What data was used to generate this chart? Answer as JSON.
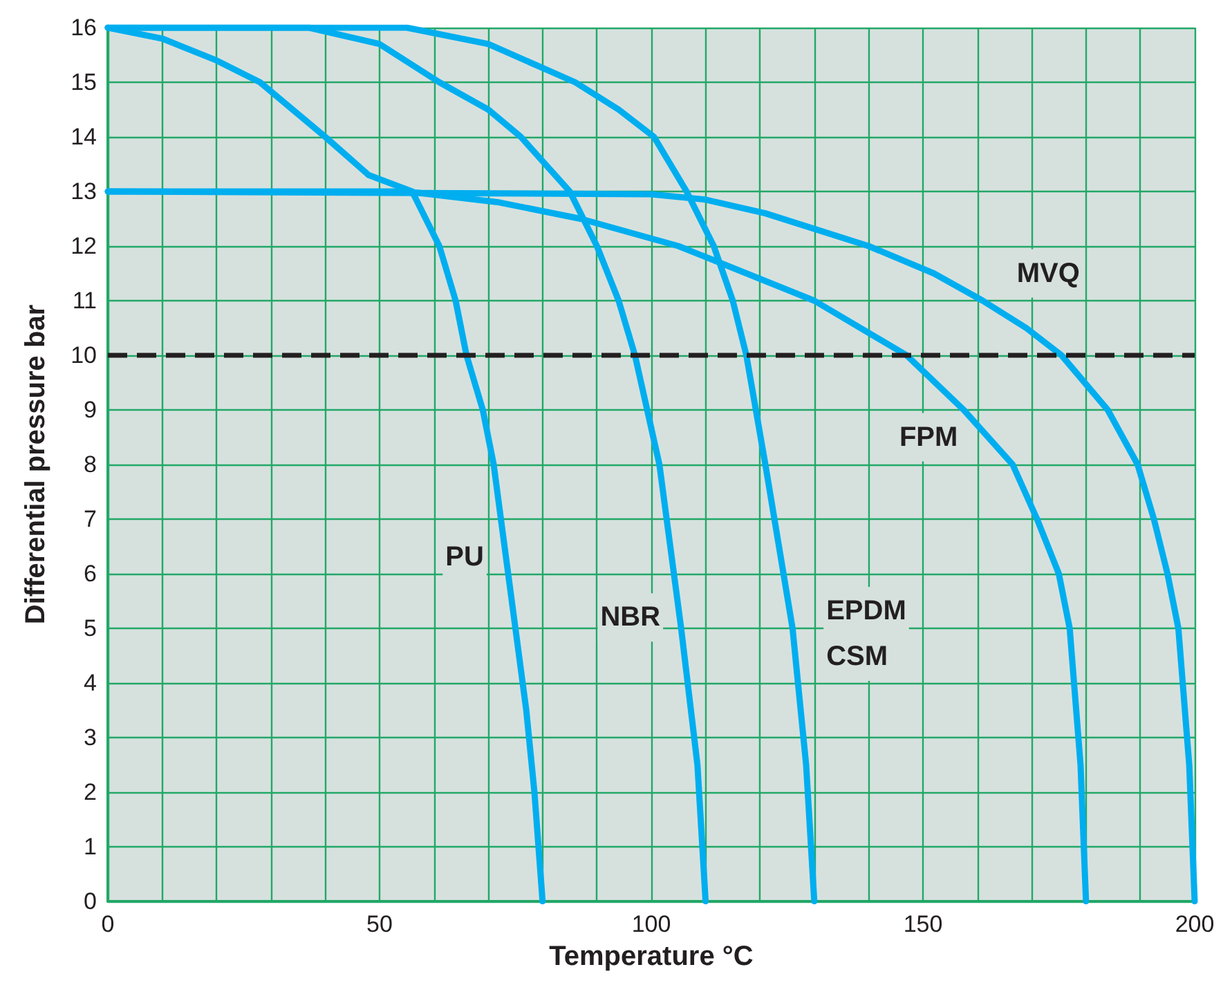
{
  "chart_data": {
    "type": "line",
    "xlabel": "Temperature °C",
    "ylabel": "Differential pressure bar",
    "xlim": [
      0,
      200
    ],
    "ylim": [
      0,
      16
    ],
    "xticks": [
      0,
      {
        "value": 10,
        "label": null
      },
      {
        "value": 20,
        "label": null
      },
      {
        "value": 30,
        "label": null
      },
      {
        "value": 40,
        "label": null
      },
      50,
      {
        "value": 60,
        "label": null
      },
      {
        "value": 70,
        "label": null
      },
      {
        "value": 80,
        "label": null
      },
      {
        "value": 90,
        "label": null
      },
      100,
      {
        "value": 110,
        "label": null
      },
      {
        "value": 120,
        "label": null
      },
      {
        "value": 130,
        "label": null
      },
      {
        "value": 140,
        "label": null
      },
      150,
      {
        "value": 160,
        "label": null
      },
      {
        "value": 170,
        "label": null
      },
      {
        "value": 180,
        "label": null
      },
      {
        "value": 190,
        "label": null
      },
      200
    ],
    "yticks": [
      0,
      1,
      2,
      3,
      4,
      5,
      6,
      7,
      8,
      9,
      10,
      11,
      12,
      13,
      14,
      15,
      16
    ],
    "grid": true,
    "legend": false,
    "marker": "none",
    "line_style": "solid",
    "series": [
      {
        "name": "PU",
        "color": "#00aeef",
        "x": [
          0,
          10,
          20,
          28,
          40,
          48,
          56,
          61,
          64,
          66,
          69,
          71,
          73,
          75,
          77,
          78.5,
          80
        ],
        "values": [
          16,
          15.8,
          15.4,
          15,
          14,
          13.3,
          13,
          12,
          11,
          10,
          9,
          8,
          6.5,
          5,
          3.5,
          2,
          0
        ]
      },
      {
        "name": "NBR",
        "color": "#00aeef",
        "x": [
          0,
          37,
          50,
          61,
          70,
          76,
          85,
          90,
          94,
          97,
          101.5,
          103.5,
          105.5,
          108.5,
          110
        ],
        "values": [
          16,
          16,
          15.7,
          15,
          14.5,
          14,
          13,
          12,
          11,
          10,
          8,
          6.5,
          5,
          2.5,
          0
        ]
      },
      {
        "name": "EPDM\nCSM",
        "color": "#00aeef",
        "x": [
          0,
          55,
          70,
          86,
          94,
          100.5,
          106.5,
          111.5,
          115,
          117.5,
          121,
          123.5,
          126,
          128.5,
          130
        ],
        "values": [
          16,
          16,
          15.7,
          15,
          14.5,
          14,
          13,
          12,
          11,
          10,
          8,
          6.5,
          5,
          2.5,
          0
        ]
      },
      {
        "name": "FPM",
        "color": "#00aeef",
        "x": [
          0,
          55,
          72,
          87,
          105,
          130,
          147,
          157.5,
          166.5,
          171,
          175,
          177,
          179,
          180
        ],
        "values": [
          13,
          13,
          12.8,
          12.5,
          12,
          11,
          10,
          9,
          8,
          7,
          6,
          5,
          2.5,
          0
        ]
      },
      {
        "name": "MVQ",
        "color": "#00aeef",
        "x": [
          0,
          100,
          110,
          121,
          140,
          152,
          161,
          169,
          175.5,
          184,
          189.5,
          192.5,
          195,
          197,
          199,
          200
        ],
        "values": [
          13,
          12.95,
          12.85,
          12.6,
          12,
          11.5,
          11,
          10.5,
          10,
          9,
          8,
          7,
          6,
          5,
          2.5,
          0
        ]
      }
    ],
    "ref_lines": [
      {
        "axis": "y",
        "value": 10,
        "color": "#231f20",
        "line_style": "dashed"
      }
    ]
  }
}
